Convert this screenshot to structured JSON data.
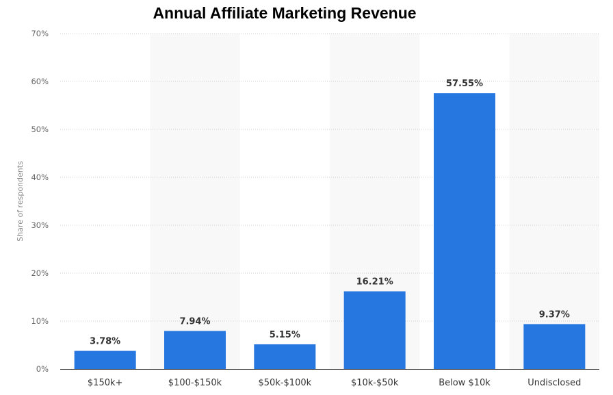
{
  "chart_data": {
    "type": "bar",
    "title": "Annual Affiliate Marketing Revenue",
    "ylabel": "Share of respondents",
    "xlabel": "",
    "categories": [
      "$150k+",
      "$100-$150k",
      "$50k-$100k",
      "$10k-$50k",
      "Below $10k",
      "Undisclosed"
    ],
    "values": [
      3.78,
      7.94,
      5.15,
      16.21,
      57.55,
      9.37
    ],
    "value_labels": [
      "3.78%",
      "7.94%",
      "5.15%",
      "16.21%",
      "57.55%",
      "9.37%"
    ],
    "y_ticks": [
      "0%",
      "10%",
      "20%",
      "30%",
      "40%",
      "50%",
      "60%",
      "70%"
    ],
    "ylim": [
      0,
      70
    ],
    "grid": true,
    "bar_color": "#2777e0",
    "band_color": "#f8f8f9",
    "grid_color": "#cccccc"
  }
}
